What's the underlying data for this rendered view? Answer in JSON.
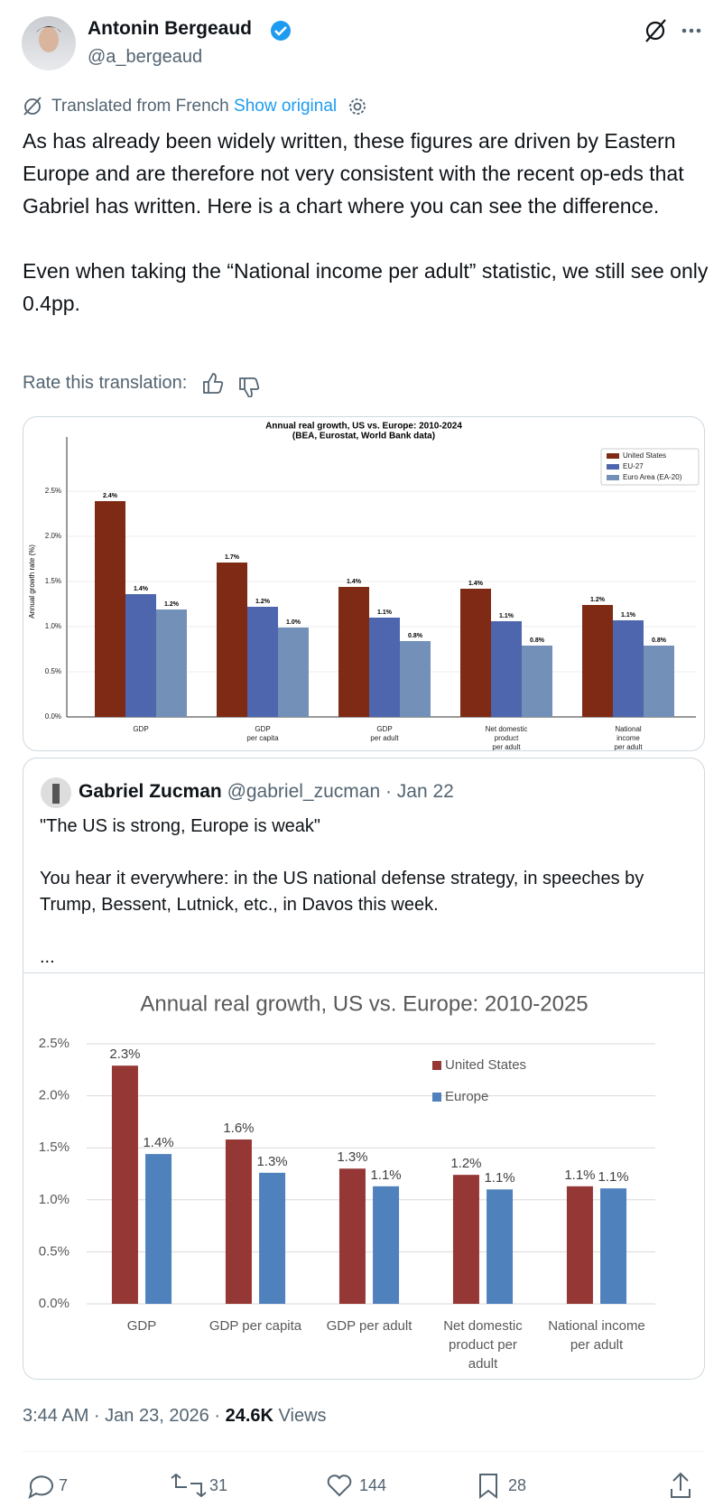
{
  "author": {
    "name": "Antonin Bergeaud",
    "handle": "@a_bergeaud"
  },
  "translation": {
    "note": "Translated from French",
    "link": "Show original"
  },
  "body": [
    "As has already been widely written, these figures are driven by Eastern Europe and are therefore not very consistent with the recent op-eds that Gabriel has written. Here is a chart where you can see the difference.",
    "Even when taking the “National income per adult” statistic, we still see only 0.4pp."
  ],
  "rate_label": "Rate this translation:",
  "quote": {
    "name": "Gabriel Zucman",
    "handle_date": "@gabriel_zucman · Jan 22",
    "body": [
      "\"The US is strong, Europe is weak\"",
      "You hear it everywhere: in the US national defense strategy, in speeches by Trump, Bessent, Lutnick, etc., in Davos this week.",
      "..."
    ]
  },
  "timestamp": "3:44 AM · Jan 23, 2026 ·",
  "views": "24.6K",
  "views_label": "Views",
  "stats": {
    "replies": "7",
    "reposts": "31",
    "likes": "144",
    "bookmarks": "28"
  },
  "chart_data": [
    {
      "type": "bar",
      "title": "Annual real growth, US vs. Europe: 2010-2024",
      "subtitle": "(BEA, Eurostat, World Bank data)",
      "y_label": "Annual growth rate (%)",
      "categories": [
        "GDP",
        "GDP\nper capita",
        "GDP\nper adult",
        "Net domestic\nproduct\nper adult",
        "National\nincome\nper adult"
      ],
      "series": [
        {
          "name": "United States",
          "color": "#7f2a14",
          "values": [
            2.39,
            1.71,
            1.44,
            1.42,
            1.24
          ],
          "value_labels": [
            "2.4%",
            "1.7%",
            "1.4%",
            "1.4%",
            "1.2%"
          ]
        },
        {
          "name": "EU-27",
          "color": "#4e66ad",
          "values": [
            1.36,
            1.22,
            1.1,
            1.06,
            1.07
          ],
          "value_labels": [
            "1.4%",
            "1.2%",
            "1.1%",
            "1.1%",
            "1.1%"
          ]
        },
        {
          "name": "Euro Area (EA-20)",
          "color": "#7390b8",
          "values": [
            1.19,
            0.99,
            0.84,
            0.79,
            0.79
          ],
          "value_labels": [
            "1.2%",
            "1.0%",
            "0.8%",
            "0.8%",
            "0.8%"
          ]
        }
      ],
      "ylim": [
        0,
        3.0
      ],
      "yticks": [
        {
          "value": 0,
          "label": "0.0%"
        },
        {
          "value": 0.5,
          "label": "0.5%"
        },
        {
          "value": 1,
          "label": "1.0%"
        },
        {
          "value": 1.5,
          "label": "1.5%"
        },
        {
          "value": 2,
          "label": "2.0%"
        },
        {
          "value": 2.5,
          "label": "2.5%"
        }
      ],
      "grid": true,
      "legend": "upper right"
    },
    {
      "type": "bar",
      "title": "Annual real growth, US vs. Europe: 2010-2025",
      "categories": [
        "GDP",
        "GDP per capita",
        "GDP per adult",
        "Net domestic\nproduct per\nadult",
        "National income\nper adult"
      ],
      "series": [
        {
          "name": "United States",
          "color": "#953735",
          "values": [
            2.29,
            1.58,
            1.3,
            1.24,
            1.13
          ],
          "value_labels": [
            "2.3%",
            "1.6%",
            "1.3%",
            "1.2%",
            "1.1%"
          ]
        },
        {
          "name": "Europe",
          "color": "#4f81bd",
          "values": [
            1.44,
            1.26,
            1.13,
            1.1,
            1.11
          ],
          "value_labels": [
            "1.4%",
            "1.3%",
            "1.1%",
            "1.1%",
            "1.1%"
          ]
        }
      ],
      "ylim": [
        0,
        2.5
      ],
      "yticks": [
        {
          "value": 0,
          "label": "0.0%"
        },
        {
          "value": 0.5,
          "label": "0.5%"
        },
        {
          "value": 1,
          "label": "1.0%"
        },
        {
          "value": 1.5,
          "label": "1.5%"
        },
        {
          "value": 2,
          "label": "2.0%"
        },
        {
          "value": 2.5,
          "label": "2.5%"
        }
      ],
      "grid": true,
      "legend": "upper right"
    }
  ]
}
